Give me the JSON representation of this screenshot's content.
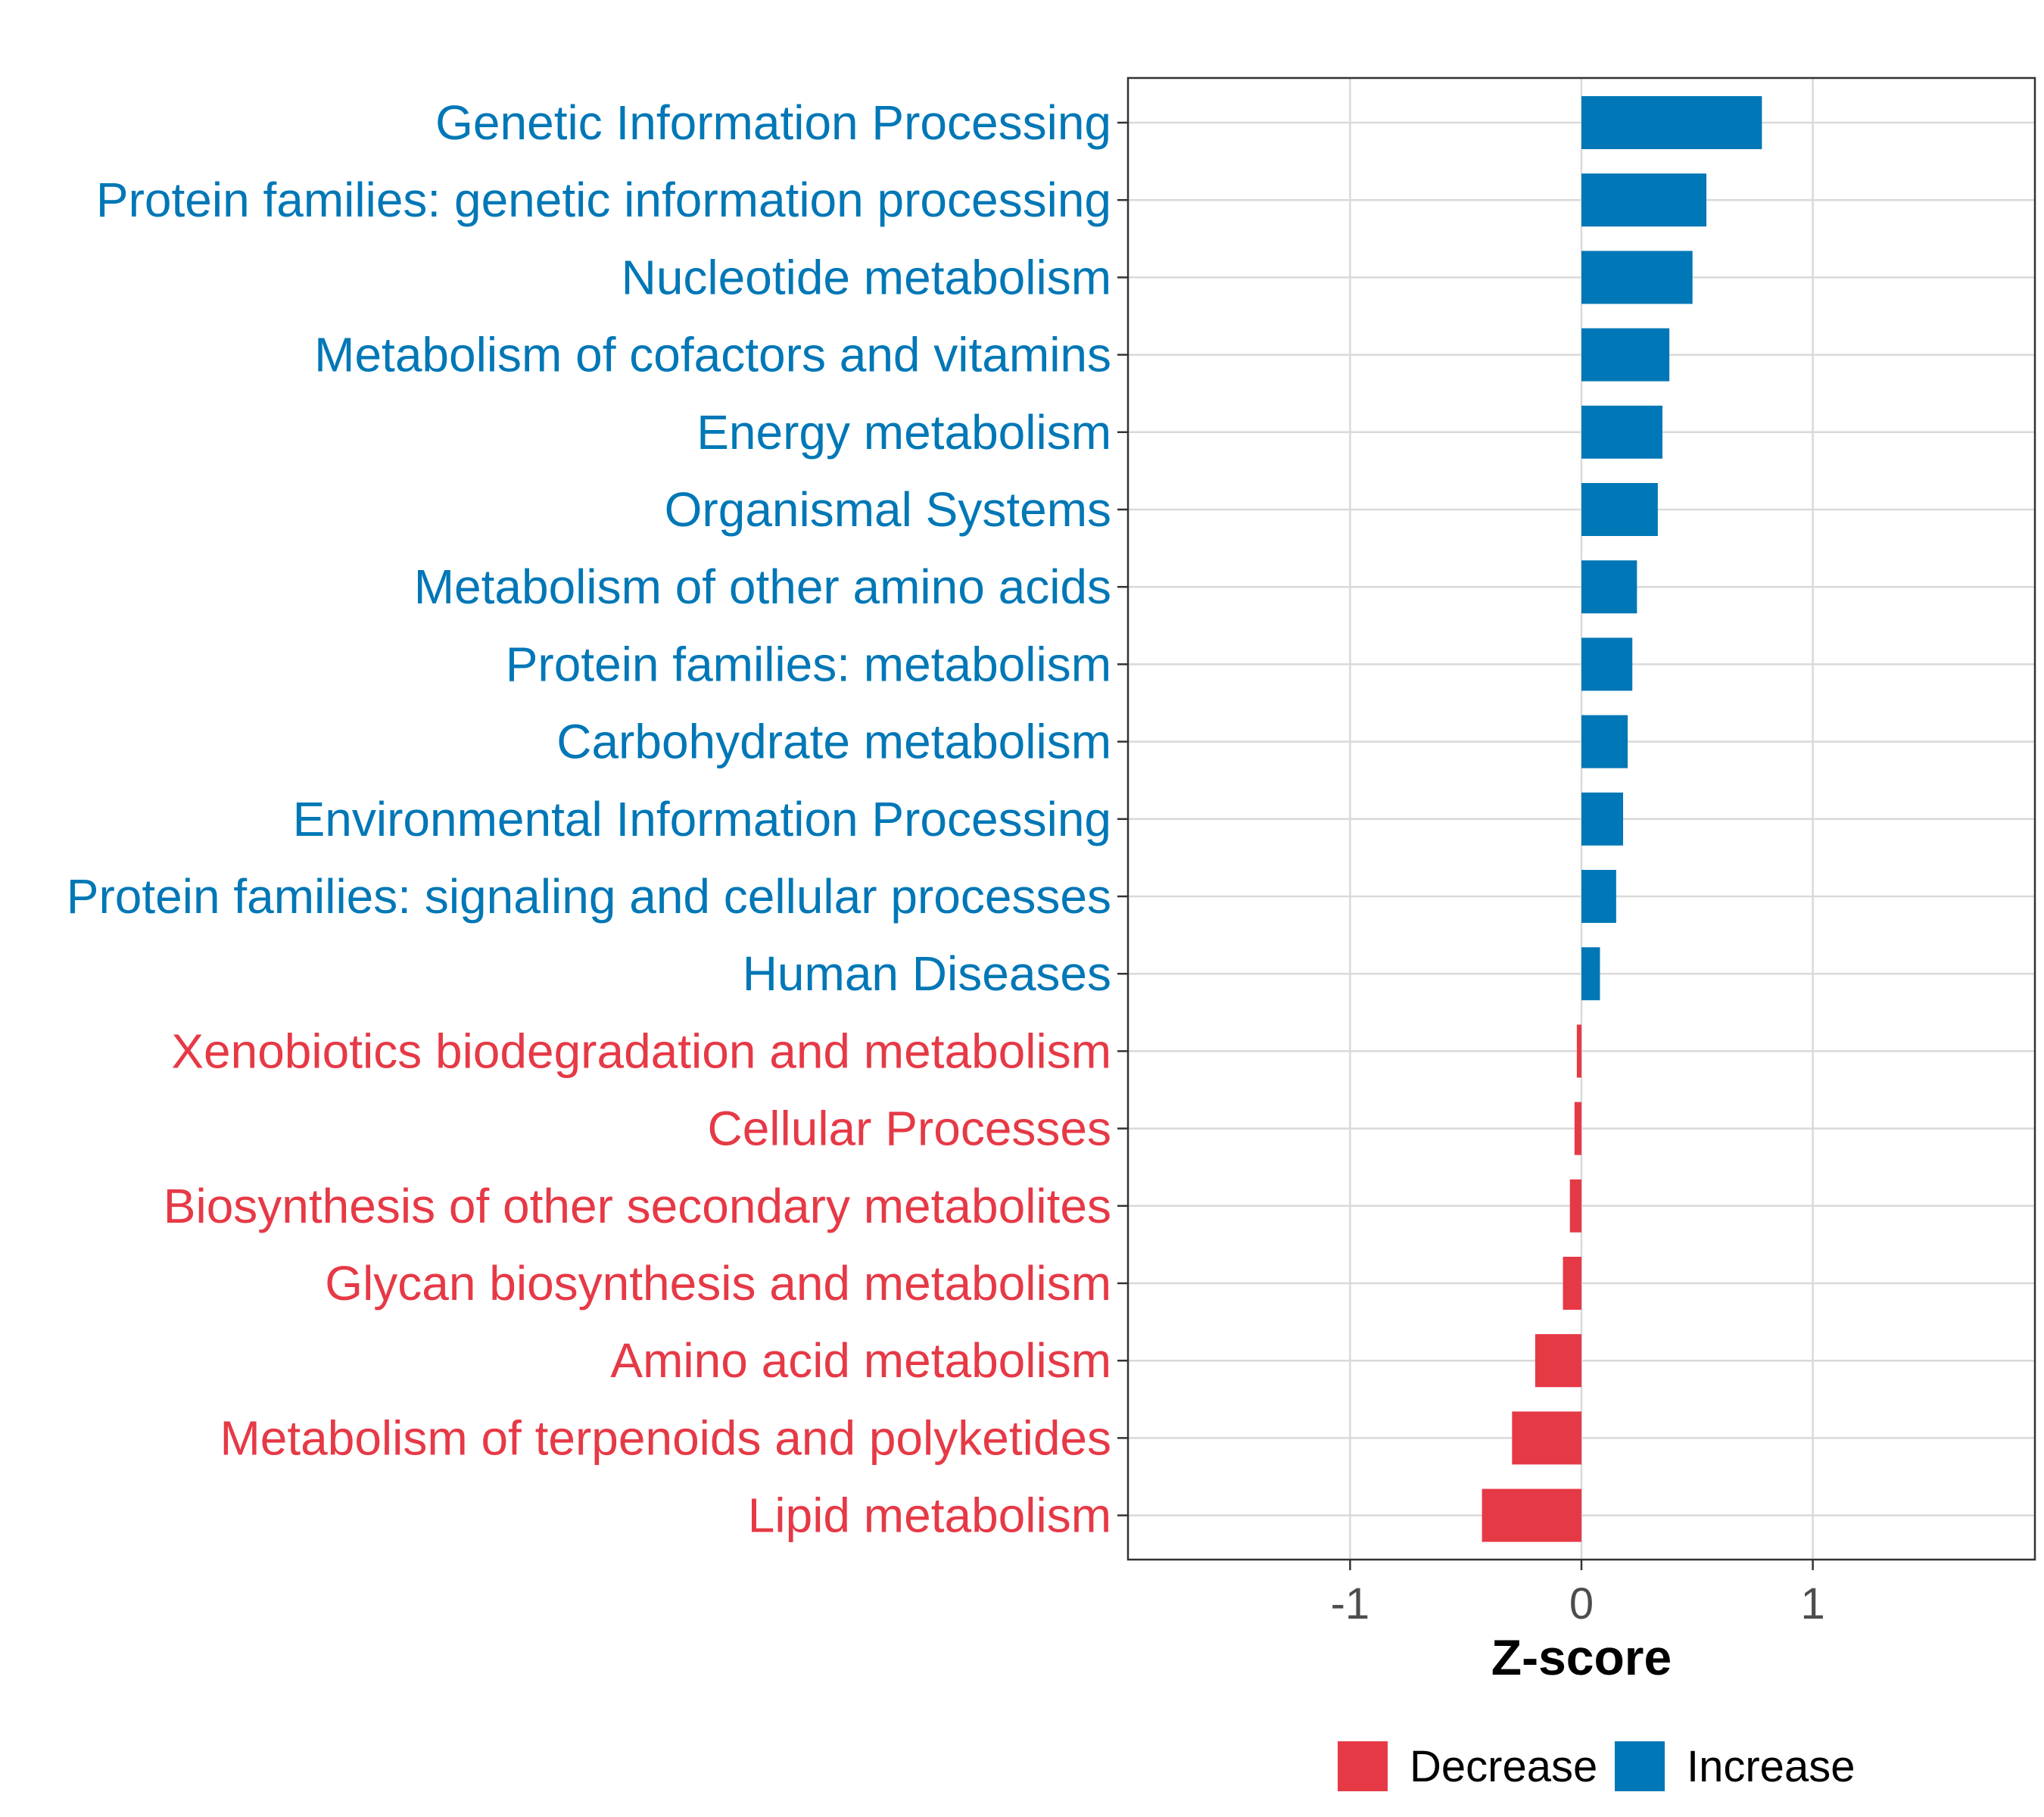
{
  "chart_data": {
    "type": "bar",
    "orientation": "horizontal",
    "title": "",
    "xlabel": "Z-score",
    "ylabel": "",
    "xlim": [
      -1.96,
      1.96
    ],
    "xticks": [
      -1,
      0,
      1
    ],
    "xtick_labels": [
      "-1",
      "0",
      "1"
    ],
    "grid": true,
    "legend_position": "bottom",
    "colors": {
      "Decrease": "#e63946",
      "Increase": "#0077b6"
    },
    "categories": [
      "Genetic Information Processing",
      "Protein families: genetic information processing",
      "Nucleotide metabolism",
      "Metabolism of cofactors and vitamins",
      "Energy metabolism",
      "Organismal Systems",
      "Metabolism of other amino acids",
      "Protein families: metabolism",
      "Carbohydrate metabolism",
      "Environmental Information Processing",
      "Protein families: signaling and cellular processes",
      "Human Diseases",
      "Xenobiotics biodegradation and metabolism",
      "Cellular Processes",
      "Biosynthesis of other secondary metabolites",
      "Glycan biosynthesis and metabolism",
      "Amino acid metabolism",
      "Metabolism of terpenoids and polyketides",
      "Lipid metabolism"
    ],
    "values": [
      0.78,
      0.54,
      0.48,
      0.38,
      0.35,
      0.33,
      0.24,
      0.22,
      0.2,
      0.18,
      0.15,
      0.08,
      -0.02,
      -0.03,
      -0.05,
      -0.08,
      -0.2,
      -0.3,
      -0.43
    ],
    "groups": [
      "Increase",
      "Increase",
      "Increase",
      "Increase",
      "Increase",
      "Increase",
      "Increase",
      "Increase",
      "Increase",
      "Increase",
      "Increase",
      "Increase",
      "Decrease",
      "Decrease",
      "Decrease",
      "Decrease",
      "Decrease",
      "Decrease",
      "Decrease"
    ],
    "legend": [
      {
        "label": "Decrease",
        "color": "#e63946"
      },
      {
        "label": "Increase",
        "color": "#0077b6"
      }
    ]
  }
}
